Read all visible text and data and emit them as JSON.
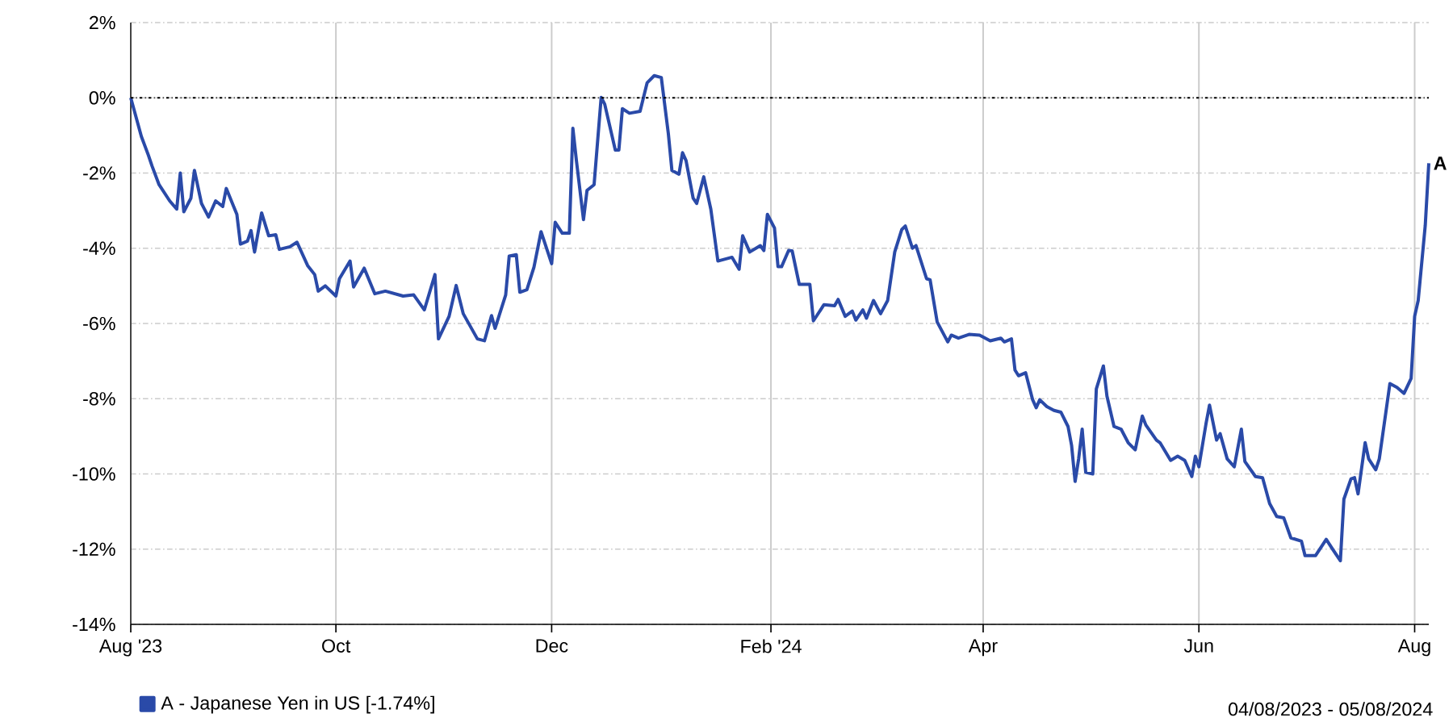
{
  "chart_data": {
    "type": "line",
    "x": [
      "2023-08-04",
      "2023-08-07",
      "2023-08-09",
      "2023-08-10",
      "2023-08-12",
      "2023-08-15",
      "2023-08-17",
      "2023-08-18",
      "2023-08-19",
      "2023-08-21",
      "2023-08-22",
      "2023-08-24",
      "2023-08-26",
      "2023-08-28",
      "2023-08-30",
      "2023-08-31",
      "2023-09-03",
      "2023-09-04",
      "2023-09-06",
      "2023-09-07",
      "2023-09-08",
      "2023-09-10",
      "2023-09-12",
      "2023-09-14",
      "2023-09-15",
      "2023-09-18",
      "2023-09-20",
      "2023-09-23",
      "2023-09-25",
      "2023-09-26",
      "2023-09-28",
      "2023-10-01",
      "2023-10-02",
      "2023-10-05",
      "2023-10-06",
      "2023-10-09",
      "2023-10-12",
      "2023-10-15",
      "2023-10-20",
      "2023-10-23",
      "2023-10-26",
      "2023-10-29",
      "2023-10-30",
      "2023-11-02",
      "2023-11-04",
      "2023-11-06",
      "2023-11-10",
      "2023-11-12",
      "2023-11-14",
      "2023-11-15",
      "2023-11-18",
      "2023-11-19",
      "2023-11-21",
      "2023-11-22",
      "2023-11-24",
      "2023-11-26",
      "2023-11-28",
      "2023-12-01",
      "2023-12-02",
      "2023-12-04",
      "2023-12-06",
      "2023-12-07",
      "2023-12-08",
      "2023-12-10",
      "2023-12-11",
      "2023-12-13",
      "2023-12-15",
      "2023-12-16",
      "2023-12-19",
      "2023-12-20",
      "2023-12-21",
      "2023-12-23",
      "2023-12-26",
      "2023-12-28",
      "2023-12-30",
      "2024-01-01",
      "2024-01-03",
      "2024-01-04",
      "2024-01-06",
      "2024-01-07",
      "2024-01-08",
      "2024-01-10",
      "2024-01-11",
      "2024-01-13",
      "2024-01-15",
      "2024-01-17",
      "2024-01-21",
      "2024-01-23",
      "2024-01-24",
      "2024-01-26",
      "2024-01-29",
      "2024-01-30",
      "2024-01-31",
      "2024-02-02",
      "2024-02-03",
      "2024-02-04",
      "2024-02-06",
      "2024-02-07",
      "2024-02-09",
      "2024-02-12",
      "2024-02-13",
      "2024-02-16",
      "2024-02-19",
      "2024-02-20",
      "2024-02-22",
      "2024-02-24",
      "2024-02-25",
      "2024-02-27",
      "2024-02-28",
      "2024-03-01",
      "2024-03-03",
      "2024-03-05",
      "2024-03-07",
      "2024-03-09",
      "2024-03-10",
      "2024-03-12",
      "2024-03-13",
      "2024-03-16",
      "2024-03-17",
      "2024-03-19",
      "2024-03-22",
      "2024-03-23",
      "2024-03-25",
      "2024-03-28",
      "2024-03-31",
      "2024-04-03",
      "2024-04-06",
      "2024-04-07",
      "2024-04-09",
      "2024-04-10",
      "2024-04-11",
      "2024-04-13",
      "2024-04-15",
      "2024-04-16",
      "2024-04-17",
      "2024-04-19",
      "2024-04-21",
      "2024-04-23",
      "2024-04-25",
      "2024-04-26",
      "2024-04-27",
      "2024-04-28",
      "2024-04-29",
      "2024-04-30",
      "2024-05-02",
      "2024-05-03",
      "2024-05-05",
      "2024-05-06",
      "2024-05-08",
      "2024-05-10",
      "2024-05-12",
      "2024-05-14",
      "2024-05-16",
      "2024-05-17",
      "2024-05-20",
      "2024-05-21",
      "2024-05-24",
      "2024-05-26",
      "2024-05-28",
      "2024-05-30",
      "2024-05-31",
      "2024-06-01",
      "2024-06-03",
      "2024-06-04",
      "2024-06-06",
      "2024-06-07",
      "2024-06-09",
      "2024-06-11",
      "2024-06-13",
      "2024-06-14",
      "2024-06-17",
      "2024-06-19",
      "2024-06-21",
      "2024-06-23",
      "2024-06-25",
      "2024-06-27",
      "2024-06-30",
      "2024-07-01",
      "2024-07-04",
      "2024-07-07",
      "2024-07-09",
      "2024-07-11",
      "2024-07-12",
      "2024-07-14",
      "2024-07-15",
      "2024-07-16",
      "2024-07-18",
      "2024-07-19",
      "2024-07-21",
      "2024-07-22",
      "2024-07-25",
      "2024-07-27",
      "2024-07-29",
      "2024-07-31",
      "2024-08-01",
      "2024-08-02",
      "2024-08-04",
      "2024-08-05"
    ],
    "series": [
      {
        "name": "A - Japanese Yen in US [-1.74%]",
        "color": "#2a4aa8",
        "values": [
          0,
          -1.03,
          -1.53,
          -1.81,
          -2.31,
          -2.74,
          -2.96,
          -2.0,
          -3.03,
          -2.67,
          -1.93,
          -2.81,
          -3.17,
          -2.74,
          -2.89,
          -2.41,
          -3.1,
          -3.89,
          -3.81,
          -3.53,
          -4.1,
          -3.06,
          -3.67,
          -3.64,
          -4.03,
          -3.96,
          -3.84,
          -4.46,
          -4.7,
          -5.14,
          -5.0,
          -5.27,
          -4.81,
          -4.34,
          -5.03,
          -4.53,
          -5.21,
          -5.14,
          -5.27,
          -5.24,
          -5.64,
          -4.7,
          -6.41,
          -5.81,
          -4.99,
          -5.74,
          -6.41,
          -6.46,
          -5.79,
          -6.13,
          -5.24,
          -4.21,
          -4.17,
          -5.17,
          -5.1,
          -4.5,
          -3.56,
          -4.41,
          -3.31,
          -3.6,
          -3.6,
          -0.81,
          -1.67,
          -3.24,
          -2.46,
          -2.31,
          0.01,
          -0.17,
          -1.39,
          -1.39,
          -0.29,
          -0.41,
          -0.36,
          0.4,
          0.59,
          0.54,
          -0.96,
          -1.93,
          -2.03,
          -1.46,
          -1.67,
          -2.67,
          -2.81,
          -2.1,
          -2.96,
          -4.34,
          -4.24,
          -4.56,
          -3.67,
          -4.1,
          -3.93,
          -4.06,
          -3.1,
          -3.46,
          -4.49,
          -4.49,
          -4.06,
          -4.07,
          -4.96,
          -4.96,
          -5.93,
          -5.5,
          -5.53,
          -5.36,
          -5.81,
          -5.67,
          -5.91,
          -5.64,
          -5.86,
          -5.39,
          -5.74,
          -5.39,
          -4.1,
          -3.5,
          -3.41,
          -4.0,
          -3.93,
          -4.81,
          -4.84,
          -5.96,
          -6.49,
          -6.31,
          -6.39,
          -6.29,
          -6.31,
          -6.46,
          -6.39,
          -6.49,
          -6.41,
          -7.24,
          -7.39,
          -7.31,
          -8.03,
          -8.24,
          -8.03,
          -8.21,
          -8.31,
          -8.36,
          -8.74,
          -9.24,
          -10.2,
          -9.6,
          -8.81,
          -9.96,
          -10.0,
          -7.74,
          -7.13,
          -7.93,
          -8.74,
          -8.81,
          -9.17,
          -9.36,
          -8.46,
          -8.7,
          -9.1,
          -9.17,
          -9.64,
          -9.53,
          -9.64,
          -10.07,
          -9.53,
          -9.81,
          -8.67,
          -8.17,
          -9.1,
          -8.93,
          -9.6,
          -9.81,
          -8.81,
          -9.67,
          -10.07,
          -10.1,
          -10.79,
          -11.13,
          -11.17,
          -11.7,
          -11.79,
          -12.17,
          -12.17,
          -11.74,
          -12.03,
          -12.31,
          -10.67,
          -10.13,
          -10.1,
          -10.53,
          -9.17,
          -9.6,
          -9.89,
          -9.6,
          -7.6,
          -7.7,
          -7.86,
          -7.46,
          -5.81,
          -5.39,
          -3.39,
          -1.74
        ]
      }
    ],
    "xlim": [
      "2023-08-04",
      "2024-08-05"
    ],
    "xticks": [
      {
        "value": "2023-08-04",
        "label": "Aug '23"
      },
      {
        "value": "2023-10-01",
        "label": "Oct"
      },
      {
        "value": "2023-12-01",
        "label": "Dec"
      },
      {
        "value": "2024-02-01",
        "label": "Feb '24"
      },
      {
        "value": "2024-04-01",
        "label": "Apr"
      },
      {
        "value": "2024-06-01",
        "label": "Jun"
      },
      {
        "value": "2024-08-01",
        "label": "Aug"
      }
    ],
    "ylim": [
      -14,
      2
    ],
    "yticks": [
      {
        "value": 2,
        "label": "2%"
      },
      {
        "value": 0,
        "label": "0%"
      },
      {
        "value": -2,
        "label": "-2%"
      },
      {
        "value": -4,
        "label": "-4%"
      },
      {
        "value": -6,
        "label": "-6%"
      },
      {
        "value": -8,
        "label": "-8%"
      },
      {
        "value": -10,
        "label": "-10%"
      },
      {
        "value": -12,
        "label": "-12%"
      },
      {
        "value": -14,
        "label": "-14%"
      }
    ],
    "ref_lines": [
      {
        "axis": "y",
        "value": 0,
        "label": null,
        "color": "#000000",
        "line_style": "dotted"
      }
    ],
    "annotations": [
      {
        "text": "A",
        "x": "2024-08-05",
        "y": -1.74
      },
      "04/08/2023 - 05/08/2024"
    ],
    "grid": true,
    "legend": "bottom",
    "marker": "none",
    "line_style": "solid"
  }
}
